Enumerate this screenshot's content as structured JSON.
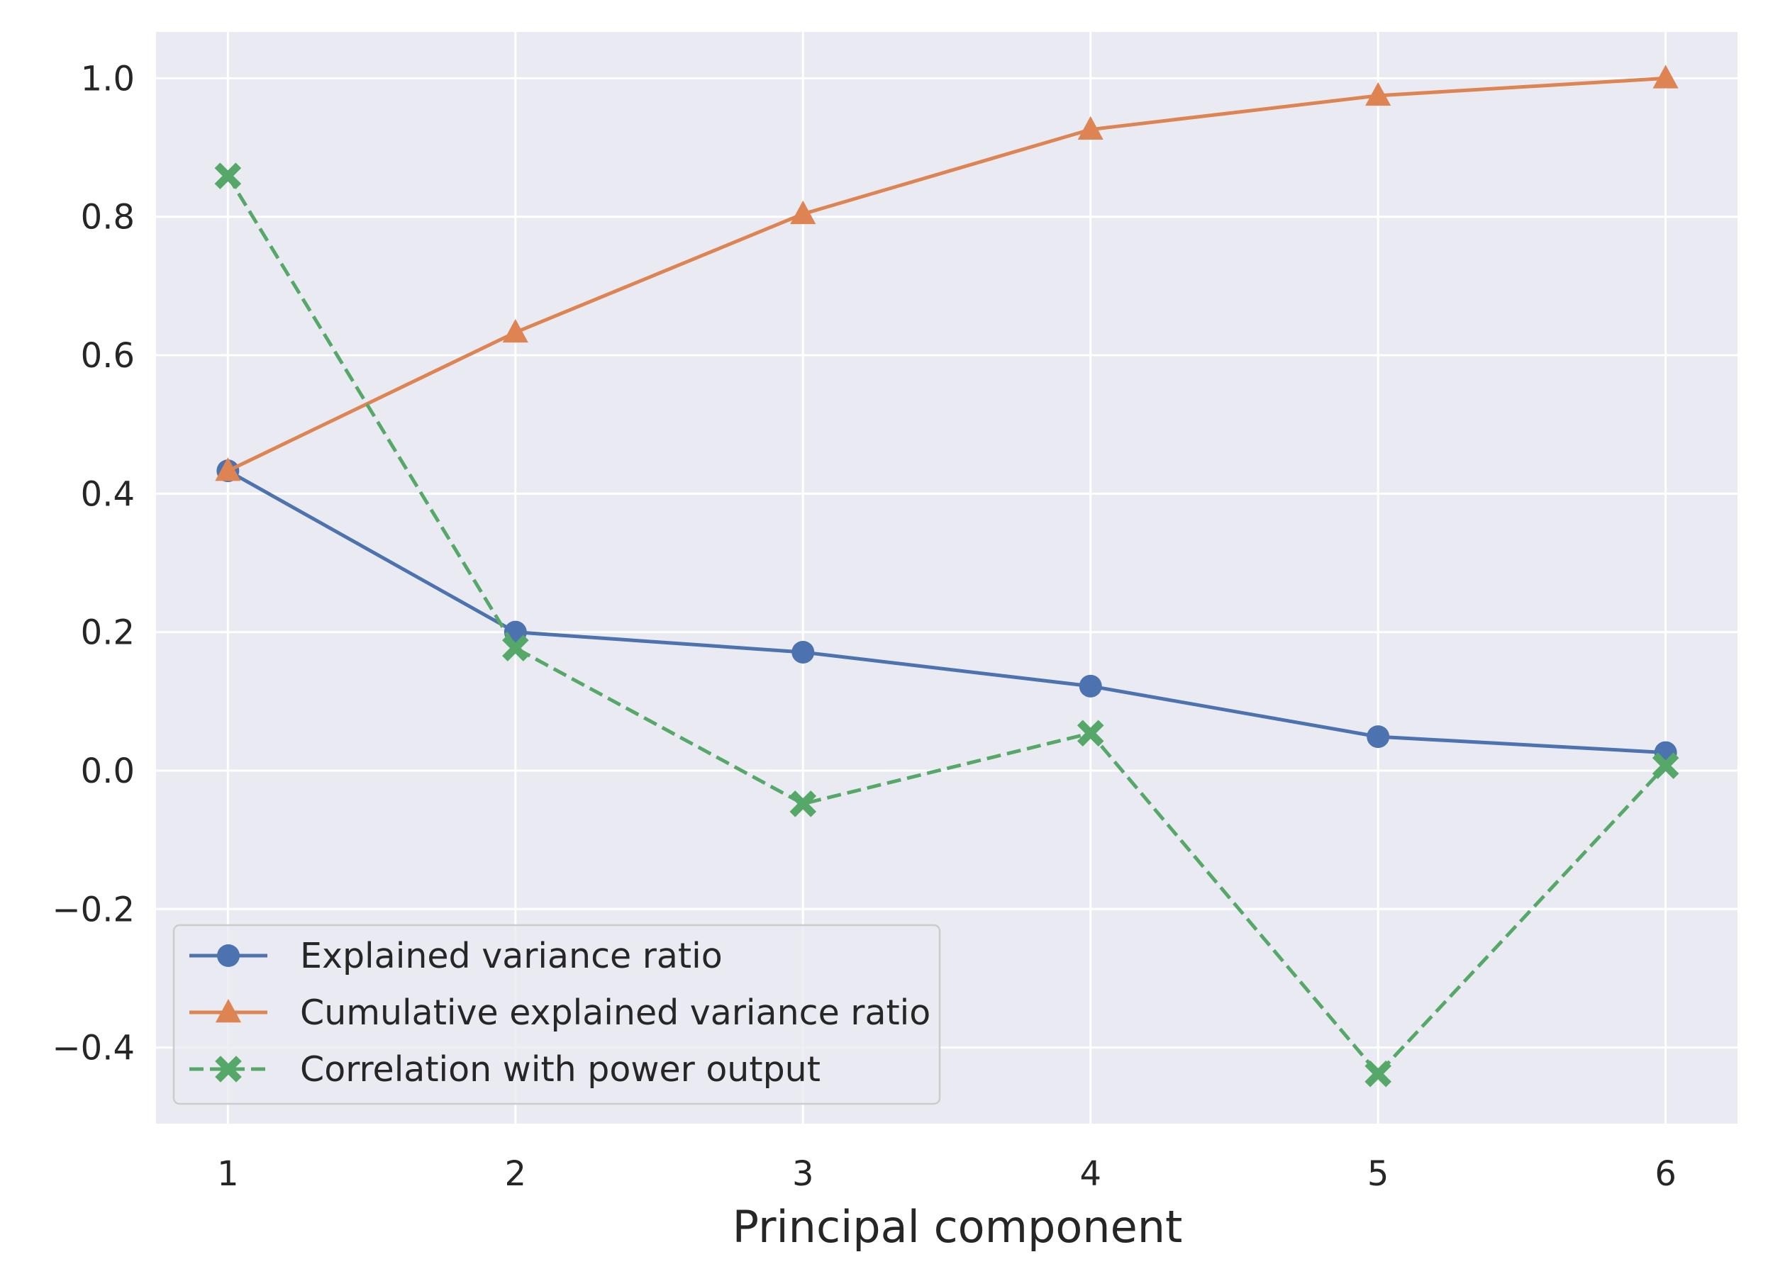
{
  "chart_data": {
    "type": "line",
    "title": "",
    "xlabel": "Principal component",
    "ylabel": "",
    "x": [
      1,
      2,
      3,
      4,
      5,
      6
    ],
    "xlim": [
      0.75,
      6.25
    ],
    "ylim": [
      -0.51,
      1.067
    ],
    "x_ticks": [
      1,
      2,
      3,
      4,
      5,
      6
    ],
    "x_tick_labels": [
      "1",
      "2",
      "3",
      "4",
      "5",
      "6"
    ],
    "y_ticks": [
      -0.4,
      -0.2,
      0.0,
      0.2,
      0.4,
      0.6,
      0.8,
      1.0
    ],
    "y_tick_labels": [
      "−0.4",
      "−0.2",
      "0.0",
      "0.2",
      "0.4",
      "0.6",
      "0.8",
      "1.0"
    ],
    "grid": true,
    "legend_position": "lower-left",
    "series": [
      {
        "name": "Explained variance ratio",
        "values": [
          0.433,
          0.2,
          0.171,
          0.122,
          0.049,
          0.026
        ],
        "color": "#4c72b0",
        "marker": "circle",
        "linestyle": "solid"
      },
      {
        "name": "Cumulative explained variance ratio",
        "values": [
          0.433,
          0.633,
          0.804,
          0.926,
          0.975,
          1.0
        ],
        "color": "#dd8452",
        "marker": "triangle",
        "linestyle": "solid"
      },
      {
        "name": "Correlation with power output",
        "values": [
          0.859,
          0.177,
          -0.048,
          0.054,
          -0.438,
          0.007
        ],
        "color": "#55a868",
        "marker": "x",
        "linestyle": "dashed"
      }
    ]
  }
}
